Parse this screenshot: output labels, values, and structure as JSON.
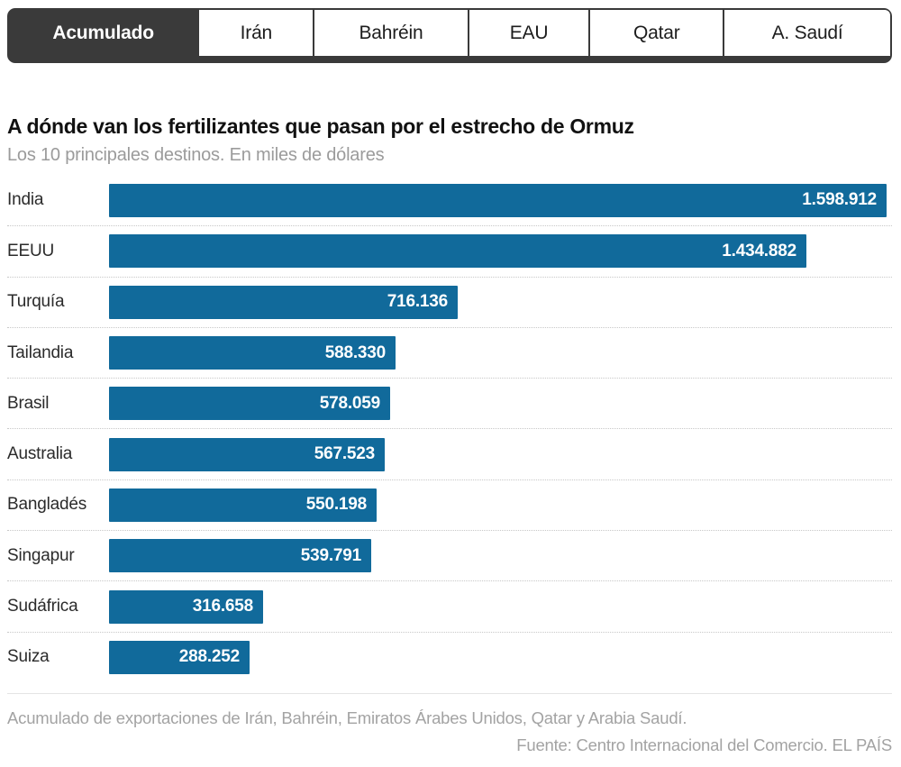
{
  "tabs": [
    {
      "label": "Acumulado",
      "active": true
    },
    {
      "label": "Irán",
      "active": false
    },
    {
      "label": "Bahréin",
      "active": false
    },
    {
      "label": "EAU",
      "active": false
    },
    {
      "label": "Qatar",
      "active": false
    },
    {
      "label": "A. Saudí",
      "active": false
    }
  ],
  "chart_data": {
    "type": "bar",
    "orientation": "horizontal",
    "title": "A dónde van los fertilizantes que pasan por el estrecho de Ormuz",
    "subtitle": "Los 10 principales destinos. En miles de dólares",
    "unit": "miles de dólares",
    "categories": [
      "India",
      "EEUU",
      "Turquía",
      "Tailandia",
      "Brasil",
      "Australia",
      "Bangladés",
      "Singapur",
      "Sudáfrica",
      "Suiza"
    ],
    "values": [
      1598912,
      1434882,
      716136,
      588330,
      578059,
      567523,
      550198,
      539791,
      316658,
      288252
    ],
    "value_labels": [
      "1.598.912",
      "1.434.882",
      "716.136",
      "588.330",
      "578.059",
      "567.523",
      "550.198",
      "539.791",
      "316.658",
      "288.252"
    ],
    "xlim": [
      0,
      1598912
    ],
    "bar_color": "#116a9b",
    "grid": false,
    "legend": "none",
    "value_label_position": "inside-end"
  },
  "footer": {
    "note": "Acumulado de exportaciones de Irán, Bahréin, Emiratos Árabes Unidos, Qatar y Arabia Saudí.",
    "source": "Fuente: Centro Internacional del Comercio. EL PAÍS"
  }
}
